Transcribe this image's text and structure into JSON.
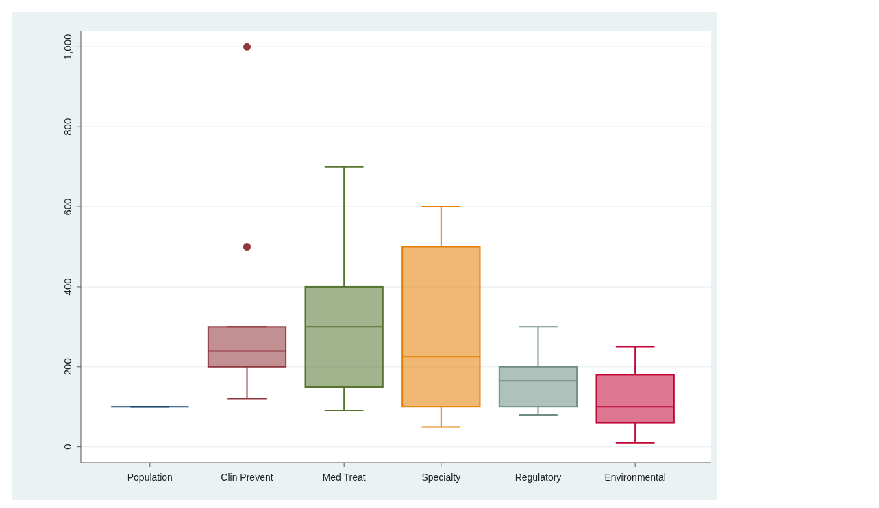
{
  "chart_data": {
    "type": "box",
    "categories": [
      "Population",
      "Clin Prevent",
      "Med Treat",
      "Specialty",
      "Regulatory",
      "Environmental"
    ],
    "colors": [
      "#1a476f",
      "#90353b",
      "#55752f",
      "#e37e00",
      "#6e8e84",
      "#c10534"
    ],
    "boxes": [
      {
        "low": 100,
        "q1": 100,
        "median": 100,
        "q3": 100,
        "high": 100
      },
      {
        "low": 120,
        "q1": 200,
        "median": 240,
        "q3": 300,
        "high": 300,
        "outliers": [
          500,
          1000
        ]
      },
      {
        "low": 90,
        "q1": 150,
        "median": 300,
        "q3": 400,
        "high": 700
      },
      {
        "low": 50,
        "q1": 100,
        "median": 225,
        "q3": 500,
        "high": 600
      },
      {
        "low": 80,
        "q1": 100,
        "median": 165,
        "q3": 200,
        "high": 300
      },
      {
        "low": 10,
        "q1": 60,
        "median": 100,
        "q3": 180,
        "high": 250
      }
    ],
    "ylim": [
      -40,
      1040
    ],
    "yticks": [
      0,
      200,
      400,
      600,
      800,
      {
        "value": 1000,
        "label": "1,000"
      }
    ],
    "grid": "y"
  }
}
